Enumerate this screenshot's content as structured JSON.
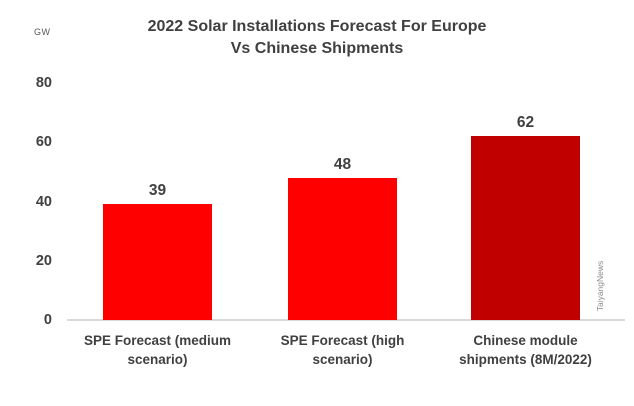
{
  "chart": {
    "title_lines": [
      "2022 Solar Installations Forecast For Europe",
      "Vs Chinese Shipments"
    ],
    "unit": "GW",
    "watermark": "TaiyangNews"
  },
  "chart_data": {
    "type": "bar",
    "title": "2022 Solar Installations Forecast For Europe Vs Chinese Shipments",
    "ylabel": "GW",
    "xlabel": "",
    "categories": [
      "SPE Forecast (medium scenario)",
      "SPE Forecast (high scenario)",
      "Chinese module shipments (8M/2022)"
    ],
    "values": [
      39,
      48,
      62
    ],
    "bar_colors": [
      "#FE0000",
      "#FE0000",
      "#C00000"
    ],
    "ylim": [
      0,
      80
    ],
    "yticks": [
      0,
      20,
      40,
      60,
      80
    ],
    "grid": false,
    "legend": false,
    "data_labels_shown": true,
    "text_color": "#404040",
    "axis_line_color": "#D9D9D9",
    "watermark": "TaiyangNews"
  }
}
